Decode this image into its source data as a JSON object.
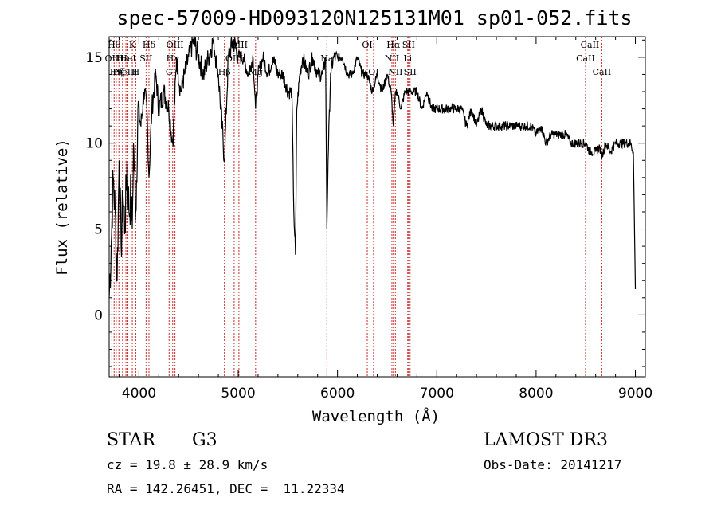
{
  "chart_data": {
    "type": "line",
    "title": "spec-57009-HD093120N125131M01_sp01-052.fits",
    "xlabel": "Wavelength (Å)",
    "ylabel": "Flux (relative)",
    "xlim": [
      3700,
      9100
    ],
    "ylim": [
      -3.6,
      16.2
    ],
    "xticks": [
      4000,
      5000,
      6000,
      7000,
      8000,
      9000
    ],
    "yticks": [
      0,
      5,
      10,
      15
    ],
    "line_color": "#000000",
    "marker_color": "#cc2a2a",
    "series": [
      {
        "name": "spectrum",
        "x": [
          3700,
          3720,
          3740,
          3760,
          3780,
          3800,
          3820,
          3840,
          3860,
          3880,
          3900,
          3920,
          3933,
          3945,
          3968,
          3990,
          4020,
          4050,
          4080,
          4101,
          4130,
          4170,
          4200,
          4250,
          4300,
          4340,
          4380,
          4420,
          4460,
          4500,
          4550,
          4600,
          4650,
          4700,
          4750,
          4800,
          4861,
          4900,
          4950,
          5000,
          5050,
          5100,
          5150,
          5175,
          5200,
          5250,
          5300,
          5350,
          5400,
          5450,
          5500,
          5540,
          5560,
          5577,
          5590,
          5620,
          5650,
          5700,
          5750,
          5800,
          5850,
          5880,
          5893,
          5905,
          5930,
          5960,
          6000,
          6050,
          6100,
          6150,
          6200,
          6250,
          6300,
          6350,
          6400,
          6450,
          6500,
          6540,
          6563,
          6585,
          6600,
          6640,
          6680,
          6720,
          6760,
          6800,
          6850,
          6900,
          6950,
          7000,
          7050,
          7100,
          7150,
          7200,
          7250,
          7300,
          7350,
          7400,
          7450,
          7500,
          7550,
          7600,
          7650,
          7700,
          7750,
          7800,
          7850,
          7900,
          7950,
          8000,
          8050,
          8100,
          8150,
          8200,
          8250,
          8300,
          8350,
          8400,
          8450,
          8500,
          8542,
          8560,
          8600,
          8640,
          8662,
          8700,
          8750,
          8800,
          8850,
          8900,
          8950,
          8980,
          9000
        ],
        "y": [
          1,
          4,
          8,
          6,
          2,
          9,
          4,
          7,
          5,
          9,
          6,
          7,
          5,
          10,
          6,
          12,
          11,
          13,
          12,
          8,
          12,
          14,
          12,
          13,
          12,
          10,
          15,
          13,
          14,
          15,
          16,
          15,
          14,
          15,
          16,
          14,
          9,
          15,
          16,
          15,
          15,
          14,
          15,
          12,
          14,
          15,
          14,
          15,
          14,
          14,
          13,
          13,
          6,
          3.5,
          12,
          14,
          15,
          14,
          15,
          14,
          14,
          15,
          5,
          9,
          14,
          15,
          15,
          15,
          14,
          14,
          15,
          14,
          14,
          13,
          14,
          13,
          14,
          13,
          11,
          13,
          13,
          12,
          13,
          13,
          13,
          13,
          12,
          13,
          12,
          12,
          12,
          12,
          12,
          12,
          12,
          11,
          12,
          11,
          12,
          11,
          11,
          11,
          11,
          11,
          11,
          11,
          11,
          11,
          11,
          10.5,
          11,
          10,
          10.5,
          10.5,
          10.5,
          10.5,
          10,
          10,
          10,
          10,
          9.5,
          9.5,
          9.5,
          9.8,
          9.2,
          10,
          9.5,
          10,
          10,
          10,
          10,
          9.5,
          1.5
        ]
      }
    ],
    "line_markers": [
      {
        "x": 3727,
        "label": "OII",
        "row": 1
      },
      {
        "x": 3750,
        "label": "Hθ",
        "row": 0
      },
      {
        "x": 3771,
        "label": "Hη",
        "row": 2
      },
      {
        "x": 3798,
        "label": "Hζ",
        "row": 2
      },
      {
        "x": 3835,
        "label": "Hε",
        "row": 1
      },
      {
        "x": 3869,
        "label": "NeIII",
        "row": 2
      },
      {
        "x": 3889,
        "label": "HeI",
        "row": 1
      },
      {
        "x": 3933,
        "label": "K",
        "row": 0
      },
      {
        "x": 3968,
        "label": "H",
        "row": 2
      },
      {
        "x": 4072,
        "label": "SII",
        "row": 1
      },
      {
        "x": 4101,
        "label": "Hδ",
        "row": 0
      },
      {
        "x": 4304,
        "label": "G",
        "row": 2
      },
      {
        "x": 4340,
        "label": "Hγ",
        "row": 1
      },
      {
        "x": 4363,
        "label": "OIII",
        "row": 0
      },
      {
        "x": 4861,
        "label": "Hβ",
        "row": 2
      },
      {
        "x": 4959,
        "label": "OIII",
        "row": 1
      },
      {
        "x": 5007,
        "label": "OIII",
        "row": 0
      },
      {
        "x": 5175,
        "label": "Mg",
        "row": 2
      },
      {
        "x": 5893,
        "label": "Na",
        "row": 1
      },
      {
        "x": 6300,
        "label": "OI",
        "row": 0
      },
      {
        "x": 6363,
        "label": "OI",
        "row": 2
      },
      {
        "x": 6548,
        "label": "NII",
        "row": 1
      },
      {
        "x": 6563,
        "label": "Hα",
        "row": 0
      },
      {
        "x": 6583,
        "label": "NII",
        "row": 2
      },
      {
        "x": 6707,
        "label": "Li",
        "row": 1
      },
      {
        "x": 6716,
        "label": "SII",
        "row": 0
      },
      {
        "x": 6731,
        "label": "SII",
        "row": 2
      },
      {
        "x": 8498,
        "label": "CaII",
        "row": 1
      },
      {
        "x": 8542,
        "label": "CaII",
        "row": 0
      },
      {
        "x": 8662,
        "label": "CaII",
        "row": 2
      }
    ]
  },
  "info": {
    "object_class": "STAR",
    "subclass": "G3",
    "survey": "LAMOST DR3",
    "redshift_line": "cz = 19.8 ± 28.9 km/s",
    "obs_date_line": "Obs-Date: 20141217",
    "coords_line": "RA = 142.26451, DEC =  11.22334"
  }
}
